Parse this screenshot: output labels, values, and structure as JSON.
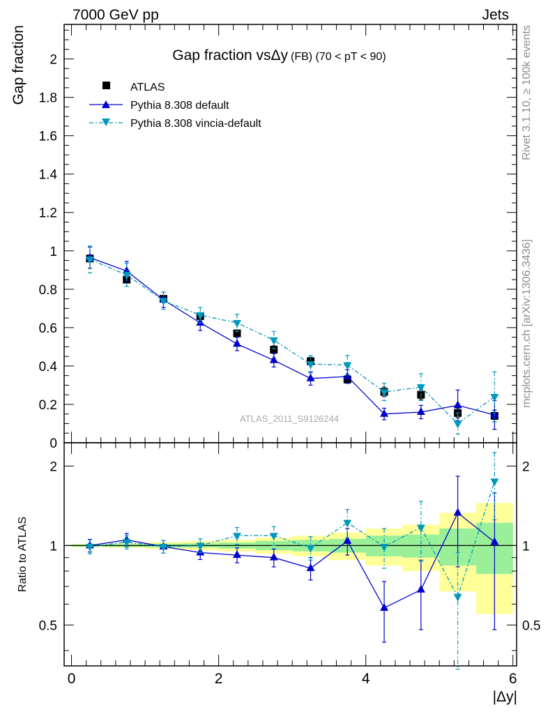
{
  "header": {
    "energy_label": "7000 GeV pp",
    "category_label": "Jets"
  },
  "side_labels": {
    "rivet": "Rivet 3.1.10, ≥ 100k events",
    "mcplots": "mcplots.cern.ch [arXiv:1306.3436]"
  },
  "watermark": "ATLAS_2011_S9126244",
  "title": {
    "main": "Gap fraction vsΔy",
    "suffix": "(FB)  (70 < pT <  90)"
  },
  "colors": {
    "data": "#000000",
    "default": "#0000cc",
    "vincia": "#0099bb",
    "band_inner": "#99f099",
    "band_outer": "#ffff99"
  },
  "chart_data": [
    {
      "type": "line",
      "ylabel": "Gap fraction",
      "xlim": [
        -0.1,
        6.05
      ],
      "ylim": [
        0,
        2.18
      ],
      "y_ticks": [
        0,
        0.2,
        0.4,
        0.6,
        0.8,
        1,
        1.2,
        1.4,
        1.6,
        1.8,
        2
      ],
      "y_tick_labels": [
        "0",
        "0.2",
        "0.4",
        "0.6",
        "0.8",
        "1",
        "1.2",
        "1.4",
        "1.6",
        "1.8",
        "2"
      ],
      "legend": [
        "ATLAS",
        "Pythia 8.308 default",
        "Pythia 8.308 vincia-default"
      ],
      "legend_position": "top-left",
      "x": [
        0.25,
        0.75,
        1.25,
        1.75,
        2.25,
        2.75,
        3.25,
        3.75,
        4.25,
        4.75,
        5.25,
        5.75
      ],
      "series": [
        {
          "name": "ATLAS",
          "style": "square",
          "values": [
            0.96,
            0.85,
            0.75,
            0.66,
            0.57,
            0.485,
            0.425,
            0.33,
            0.265,
            0.25,
            0.155,
            0.14
          ],
          "errors": [
            0.01,
            0.01,
            0.012,
            0.012,
            0.015,
            0.02,
            0.02,
            0.02,
            0.025,
            0.025,
            0.025,
            0.03
          ]
        },
        {
          "name": "Pythia 8.308 default",
          "style": "triangle-up",
          "values": [
            0.965,
            0.895,
            0.745,
            0.625,
            0.515,
            0.43,
            0.335,
            0.345,
            0.15,
            0.16,
            0.195,
            0.145
          ],
          "errors": [
            0.055,
            0.05,
            0.04,
            0.04,
            0.035,
            0.035,
            0.035,
            0.035,
            0.03,
            0.035,
            0.08,
            0.075
          ]
        },
        {
          "name": "Pythia 8.308 vincia-default",
          "style": "triangle-down",
          "values": [
            0.955,
            0.875,
            0.74,
            0.665,
            0.625,
            0.535,
            0.41,
            0.405,
            0.265,
            0.29,
            0.1,
            0.24
          ],
          "errors": [
            0.07,
            0.06,
            0.045,
            0.04,
            0.045,
            0.045,
            0.045,
            0.05,
            0.045,
            0.07,
            0.055,
            0.13
          ]
        }
      ]
    },
    {
      "type": "line",
      "xlabel": "|Δy|",
      "ylabel": "Ratio to ATLAS",
      "xlim": [
        -0.1,
        6.05
      ],
      "ylim": [
        0.35,
        2.45
      ],
      "y_ticks": [
        0.5,
        1,
        2
      ],
      "y_tick_labels": [
        "0.5",
        "1",
        "2"
      ],
      "x_ticks": [
        0,
        2,
        4,
        6
      ],
      "x_tick_labels": [
        "0",
        "2",
        "4",
        "6"
      ],
      "x": [
        0.25,
        0.75,
        1.25,
        1.75,
        2.25,
        2.75,
        3.25,
        3.75,
        4.25,
        4.75,
        5.25,
        5.75
      ],
      "bands": {
        "edges": [
          0,
          0.5,
          1,
          1.5,
          2,
          2.5,
          3,
          3.5,
          4,
          4.5,
          5,
          5.5,
          6
        ],
        "inner_half_width": [
          0.01,
          0.012,
          0.016,
          0.018,
          0.026,
          0.04,
          0.05,
          0.06,
          0.09,
          0.1,
          0.16,
          0.22
        ],
        "outer_half_width": [
          0.015,
          0.02,
          0.03,
          0.04,
          0.05,
          0.07,
          0.09,
          0.12,
          0.16,
          0.2,
          0.33,
          0.45
        ]
      },
      "series": [
        {
          "name": "Pythia 8.308 default",
          "style": "triangle-up",
          "values": [
            1.0,
            1.05,
            0.99,
            0.94,
            0.92,
            0.9,
            0.82,
            1.04,
            0.58,
            0.68,
            1.33,
            1.03
          ],
          "errors": [
            0.055,
            0.06,
            0.055,
            0.055,
            0.06,
            0.07,
            0.08,
            0.12,
            0.15,
            0.2,
            0.5,
            0.55
          ]
        },
        {
          "name": "Pythia 8.308 vincia-default",
          "style": "triangle-down",
          "values": [
            0.99,
            1.03,
            0.99,
            1.0,
            1.09,
            1.09,
            0.98,
            1.22,
            0.99,
            1.17,
            0.64,
            1.75
          ],
          "errors": [
            0.06,
            0.06,
            0.055,
            0.06,
            0.08,
            0.09,
            0.1,
            0.15,
            0.17,
            0.3,
            0.3,
            0.5
          ]
        }
      ]
    }
  ]
}
